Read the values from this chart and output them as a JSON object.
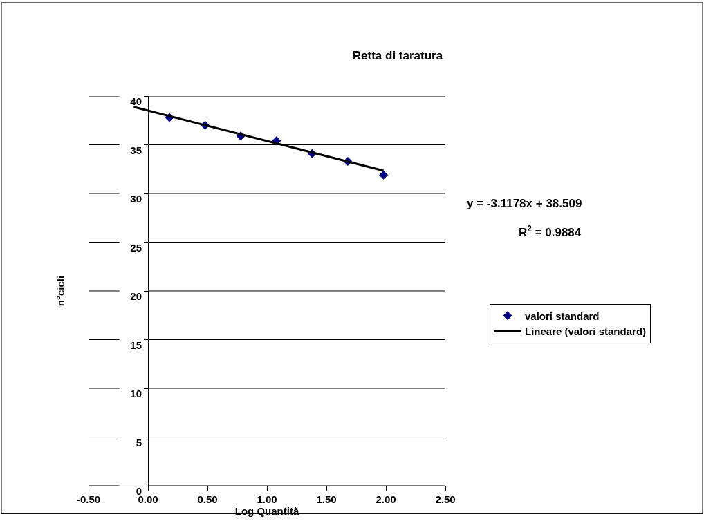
{
  "chart_data": {
    "type": "scatter",
    "title": "Retta di taratura",
    "xlabel": "Log Quantità",
    "ylabel": "n°cicli",
    "x": [
      0.18,
      0.48,
      0.78,
      1.08,
      1.38,
      1.68,
      1.98
    ],
    "series": [
      {
        "name": "valori standard",
        "color": "#000080",
        "marker": "diamond",
        "values": [
          37.8,
          37.0,
          35.9,
          35.4,
          34.1,
          33.3,
          31.9
        ]
      },
      {
        "name": "Lineare (valori standard)",
        "type": "line",
        "color": "#000000",
        "marker": "none",
        "x": [
          -0.12,
          1.98
        ],
        "values": [
          38.88,
          32.34
        ]
      }
    ],
    "annotations": [
      "y = -3.1178x + 38.509",
      "R$^{2}$ = 0.9884"
    ],
    "xlim": [
      -0.5,
      2.5
    ],
    "ylim": [
      0,
      40
    ],
    "xticks": [
      {
        "value": -0.5,
        "label": "-0.50"
      },
      {
        "value": 0,
        "label": "0.00"
      },
      {
        "value": 0.5,
        "label": "0.50"
      },
      {
        "value": 1,
        "label": "1.00"
      },
      {
        "value": 1.5,
        "label": "1.50"
      },
      {
        "value": 2,
        "label": "2.00"
      },
      {
        "value": 2.5,
        "label": "2.50"
      }
    ],
    "yticks": [
      0,
      5,
      10,
      15,
      20,
      25,
      30,
      35,
      40
    ],
    "grid": "y",
    "legend": "right"
  }
}
